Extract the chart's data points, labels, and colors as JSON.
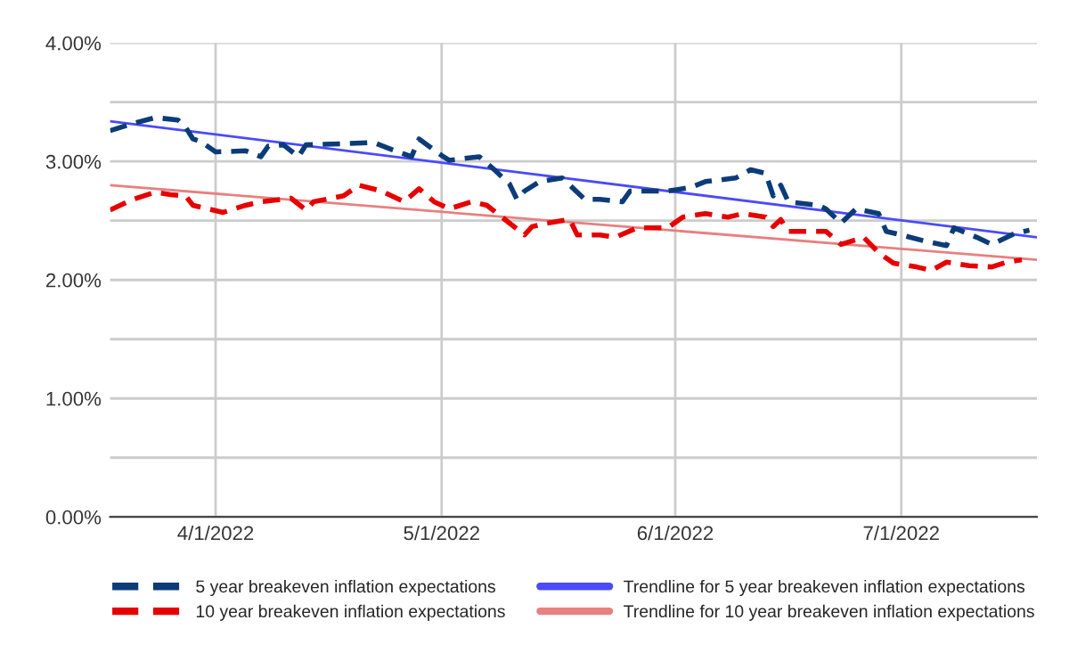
{
  "chart_data": {
    "type": "line",
    "series": [
      {
        "name": "5 year breakeven inflation expectations",
        "color": "#0c3c78",
        "line_style": "dashed",
        "x": [
          "2022-03-18",
          "2022-03-21",
          "2022-03-24",
          "2022-03-27",
          "2022-03-28",
          "2022-03-29",
          "2022-03-30",
          "2022-04-01",
          "2022-04-05",
          "2022-04-07",
          "2022-04-08",
          "2022-04-10",
          "2022-04-12",
          "2022-04-13",
          "2022-04-18",
          "2022-04-22",
          "2022-04-24",
          "2022-04-27",
          "2022-04-28",
          "2022-05-01",
          "2022-05-02",
          "2022-05-06",
          "2022-05-08",
          "2022-05-10",
          "2022-05-11",
          "2022-05-12",
          "2022-05-14",
          "2022-05-17",
          "2022-05-20",
          "2022-05-22",
          "2022-05-25",
          "2022-05-26",
          "2022-05-31",
          "2022-06-03",
          "2022-06-05",
          "2022-06-09",
          "2022-06-11",
          "2022-06-13",
          "2022-06-14",
          "2022-06-15",
          "2022-06-16",
          "2022-06-20",
          "2022-06-21",
          "2022-06-23",
          "2022-06-25",
          "2022-06-28",
          "2022-06-29",
          "2022-07-01",
          "2022-07-04",
          "2022-07-07",
          "2022-07-08",
          "2022-07-11",
          "2022-07-13",
          "2022-07-16",
          "2022-07-18"
        ],
        "values": [
          3.26,
          3.32,
          3.37,
          3.35,
          3.29,
          3.19,
          3.17,
          3.08,
          3.09,
          3.04,
          3.13,
          3.14,
          3.04,
          3.14,
          3.15,
          3.16,
          3.11,
          3.04,
          3.19,
          3.05,
          3.01,
          3.04,
          2.93,
          2.81,
          2.68,
          2.75,
          2.83,
          2.86,
          2.68,
          2.68,
          2.66,
          2.75,
          2.75,
          2.78,
          2.83,
          2.86,
          2.93,
          2.9,
          2.71,
          2.8,
          2.66,
          2.63,
          2.6,
          2.48,
          2.6,
          2.56,
          2.41,
          2.38,
          2.33,
          2.29,
          2.44,
          2.36,
          2.3,
          2.39,
          2.42
        ]
      },
      {
        "name": "10 year breakeven inflation expectations",
        "color": "#e60000",
        "line_style": "dashed",
        "x": [
          "2022-03-18",
          "2022-03-21",
          "2022-03-24",
          "2022-03-26",
          "2022-03-28",
          "2022-03-29",
          "2022-03-31",
          "2022-04-02",
          "2022-04-05",
          "2022-04-07",
          "2022-04-11",
          "2022-04-13",
          "2022-04-14",
          "2022-04-18",
          "2022-04-20",
          "2022-04-23",
          "2022-04-26",
          "2022-04-28",
          "2022-04-30",
          "2022-05-02",
          "2022-05-05",
          "2022-05-07",
          "2022-05-09",
          "2022-05-12",
          "2022-05-13",
          "2022-05-15",
          "2022-05-18",
          "2022-05-19",
          "2022-05-22",
          "2022-05-24",
          "2022-05-27",
          "2022-05-31",
          "2022-06-02",
          "2022-06-05",
          "2022-06-08",
          "2022-06-10",
          "2022-06-13",
          "2022-06-14",
          "2022-06-15",
          "2022-06-16",
          "2022-06-21",
          "2022-06-23",
          "2022-06-26",
          "2022-06-28",
          "2022-06-30",
          "2022-07-03",
          "2022-07-05",
          "2022-07-07",
          "2022-07-10",
          "2022-07-13",
          "2022-07-15",
          "2022-07-17"
        ],
        "values": [
          2.59,
          2.68,
          2.74,
          2.72,
          2.71,
          2.63,
          2.6,
          2.57,
          2.63,
          2.66,
          2.69,
          2.59,
          2.66,
          2.71,
          2.8,
          2.75,
          2.66,
          2.77,
          2.66,
          2.6,
          2.66,
          2.63,
          2.53,
          2.38,
          2.45,
          2.48,
          2.51,
          2.38,
          2.38,
          2.36,
          2.44,
          2.44,
          2.53,
          2.56,
          2.53,
          2.56,
          2.53,
          2.45,
          2.51,
          2.41,
          2.41,
          2.3,
          2.36,
          2.23,
          2.14,
          2.11,
          2.08,
          2.15,
          2.12,
          2.11,
          2.15,
          2.17
        ]
      },
      {
        "name": "Trendline for 5 year breakeven inflation expectations",
        "color": "#4a4aff",
        "line_style": "solid",
        "x": [
          "2022-03-18",
          "2022-07-19"
        ],
        "values": [
          3.34,
          2.36
        ]
      },
      {
        "name": "Trendline for 10 year breakeven inflation expectations",
        "color": "#e88080",
        "line_style": "solid",
        "x": [
          "2022-03-18",
          "2022-07-19"
        ],
        "values": [
          2.8,
          2.17
        ]
      }
    ],
    "xlim": [
      "2022-03-18",
      "2022-07-19"
    ],
    "xticks": [
      {
        "value": "2022-04-01",
        "label": "4/1/2022"
      },
      {
        "value": "2022-05-01",
        "label": "5/1/2022"
      },
      {
        "value": "2022-06-01",
        "label": "6/1/2022"
      },
      {
        "value": "2022-07-01",
        "label": "7/1/2022"
      }
    ],
    "ylim": [
      0,
      4
    ],
    "yticks": [
      {
        "value": 0,
        "label": "0.00%"
      },
      {
        "value": 0.5,
        "label": null
      },
      {
        "value": 1,
        "label": "1.00%"
      },
      {
        "value": 1.5,
        "label": null
      },
      {
        "value": 2,
        "label": "2.00%"
      },
      {
        "value": 2.5,
        "label": null
      },
      {
        "value": 3,
        "label": "3.00%"
      },
      {
        "value": 3.5,
        "label": null
      },
      {
        "value": 4,
        "label": "4.00%"
      }
    ],
    "grid": true,
    "legend": "bottom",
    "marker": "none"
  }
}
